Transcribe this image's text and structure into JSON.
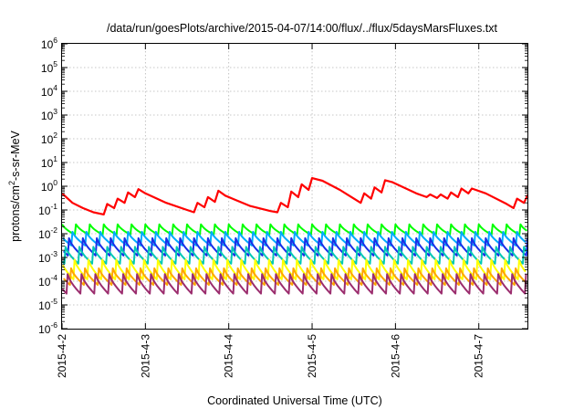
{
  "chart_data": {
    "type": "line",
    "title": "/data/run/goesPlots/archive/2015-04-07/14:00/flux/../flux/5daysMarsFluxes.txt",
    "xlabel": "Coordinated Universal Time (UTC)",
    "ylabel": {
      "prefix": "protons/cm",
      "superscript": "2",
      "suffix": "-s-sr-MeV"
    },
    "y_scale": "log",
    "ylim": [
      1e-06,
      1000000.0
    ],
    "y_ticks": [
      {
        "base": "10",
        "exp": "-6",
        "value": 1e-06
      },
      {
        "base": "10",
        "exp": "-5",
        "value": 1e-05
      },
      {
        "base": "10",
        "exp": "-4",
        "value": 0.0001
      },
      {
        "base": "10",
        "exp": "-3",
        "value": 0.001
      },
      {
        "base": "10",
        "exp": "-2",
        "value": 0.01
      },
      {
        "base": "10",
        "exp": "-1",
        "value": 0.1
      },
      {
        "base": "10",
        "exp": "0",
        "value": 1
      },
      {
        "base": "10",
        "exp": "1",
        "value": 10
      },
      {
        "base": "10",
        "exp": "2",
        "value": 100
      },
      {
        "base": "10",
        "exp": "3",
        "value": 1000
      },
      {
        "base": "10",
        "exp": "4",
        "value": 10000
      },
      {
        "base": "10",
        "exp": "5",
        "value": 100000
      },
      {
        "base": "10",
        "exp": "6",
        "value": 1000000
      }
    ],
    "x_range": [
      "2015-04-02T00:00",
      "2015-04-07T14:00"
    ],
    "x_ticks": [
      "2015-4-2",
      "2015-4-3",
      "2015-4-4",
      "2015-4-5",
      "2015-4-6",
      "2015-4-7"
    ],
    "grid": true,
    "series": [
      {
        "color": "#ff0000",
        "width": 2.2,
        "shape": "points",
        "points": [
          [
            "2015-04-02T00:00",
            0.5
          ],
          [
            "2015-04-02T03:00",
            0.2
          ],
          [
            "2015-04-02T06:00",
            0.12
          ],
          [
            "2015-04-02T09:00",
            0.08
          ],
          [
            "2015-04-02T12:00",
            0.065
          ],
          [
            "2015-04-02T13:00",
            0.18
          ],
          [
            "2015-04-02T15:00",
            0.12
          ],
          [
            "2015-04-02T16:00",
            0.3
          ],
          [
            "2015-04-02T18:00",
            0.2
          ],
          [
            "2015-04-02T19:00",
            0.55
          ],
          [
            "2015-04-02T21:00",
            0.35
          ],
          [
            "2015-04-02T22:00",
            0.75
          ],
          [
            "2015-04-03T00:00",
            0.5
          ],
          [
            "2015-04-03T06:00",
            0.2
          ],
          [
            "2015-04-03T12:00",
            0.1
          ],
          [
            "2015-04-03T14:00",
            0.08
          ],
          [
            "2015-04-03T15:00",
            0.2
          ],
          [
            "2015-04-03T17:00",
            0.13
          ],
          [
            "2015-04-03T18:00",
            0.35
          ],
          [
            "2015-04-03T20:00",
            0.22
          ],
          [
            "2015-04-03T21:00",
            0.65
          ],
          [
            "2015-04-03T23:00",
            0.4
          ],
          [
            "2015-04-04T06:00",
            0.15
          ],
          [
            "2015-04-04T12:00",
            0.09
          ],
          [
            "2015-04-04T14:00",
            0.08
          ],
          [
            "2015-04-04T15:00",
            0.2
          ],
          [
            "2015-04-04T17:00",
            0.13
          ],
          [
            "2015-04-04T18:00",
            0.6
          ],
          [
            "2015-04-04T20:00",
            0.35
          ],
          [
            "2015-04-04T21:00",
            1.2
          ],
          [
            "2015-04-04T23:00",
            0.7
          ],
          [
            "2015-04-05T00:00",
            2.2
          ],
          [
            "2015-04-05T03:00",
            1.7
          ],
          [
            "2015-04-05T08:00",
            0.7
          ],
          [
            "2015-04-05T14:00",
            0.2
          ],
          [
            "2015-04-05T15:00",
            0.5
          ],
          [
            "2015-04-05T17:00",
            0.3
          ],
          [
            "2015-04-05T18:00",
            0.9
          ],
          [
            "2015-04-05T20:00",
            0.55
          ],
          [
            "2015-04-05T21:00",
            1.8
          ],
          [
            "2015-04-05T23:00",
            1.5
          ],
          [
            "2015-04-06T06:00",
            0.5
          ],
          [
            "2015-04-06T09:00",
            0.35
          ],
          [
            "2015-04-06T10:00",
            0.45
          ],
          [
            "2015-04-06T12:00",
            0.32
          ],
          [
            "2015-04-06T13:00",
            0.45
          ],
          [
            "2015-04-06T15:00",
            0.3
          ],
          [
            "2015-04-06T16:00",
            0.55
          ],
          [
            "2015-04-06T18:00",
            0.35
          ],
          [
            "2015-04-06T19:00",
            0.8
          ],
          [
            "2015-04-06T21:00",
            0.5
          ],
          [
            "2015-04-06T22:00",
            0.8
          ],
          [
            "2015-04-07T02:00",
            0.5
          ],
          [
            "2015-04-07T08:00",
            0.18
          ],
          [
            "2015-04-07T10:00",
            0.12
          ],
          [
            "2015-04-07T11:00",
            0.3
          ],
          [
            "2015-04-07T13:00",
            0.2
          ],
          [
            "2015-04-07T14:00",
            0.4
          ],
          [
            "2015-04-07T14:00",
            0.3
          ]
        ]
      },
      {
        "color": "#00ff00",
        "width": 2,
        "shape": "sawtooth",
        "high": 0.025,
        "low": 0.009,
        "period_hours": 4,
        "phase": 0
      },
      {
        "color": "#00aaff",
        "width": 2,
        "shape": "sawtooth",
        "high": 0.012,
        "low": 0.0032,
        "period_hours": 4,
        "phase": 0.25
      },
      {
        "color": "#1a2ee6",
        "width": 2,
        "shape": "sawtooth",
        "high": 0.0065,
        "low": 0.0012,
        "period_hours": 4,
        "phase": 0.5
      },
      {
        "color": "#00c8b4",
        "width": 2,
        "shape": "sawtooth",
        "high": 0.0028,
        "low": 0.00055,
        "period_hours": 4,
        "phase": 0.75
      },
      {
        "color": "#ffff00",
        "width": 2,
        "shape": "sawtooth",
        "high": 0.0008,
        "low": 0.00012,
        "period_hours": 4,
        "phase": 0.1
      },
      {
        "color": "#ffa500",
        "width": 2,
        "shape": "sawtooth",
        "high": 0.00035,
        "low": 7e-05,
        "period_hours": 4,
        "phase": 0.35
      },
      {
        "color": "#9b2d6e",
        "width": 2,
        "shape": "sawtooth",
        "high": 0.0002,
        "low": 3e-05,
        "period_hours": 4,
        "phase": 0.6
      }
    ]
  }
}
